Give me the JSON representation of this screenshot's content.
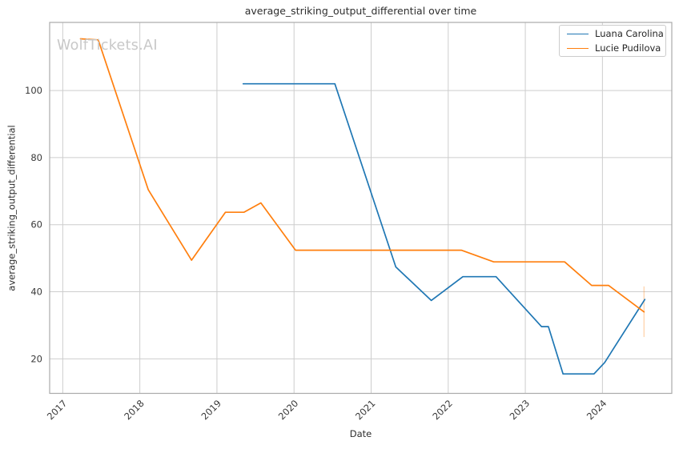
{
  "figure": {
    "watermark": "WolfTickets.AI"
  },
  "chart_data": {
    "type": "line",
    "title": "average_striking_output_differential over time",
    "xlabel": "Date",
    "ylabel": "average_striking_output_differential",
    "x_ticks": [
      2017,
      2018,
      2019,
      2020,
      2021,
      2022,
      2023,
      2024
    ],
    "y_ticks": [
      20,
      40,
      60,
      80,
      100
    ],
    "xlim": [
      2016.83,
      2024.9
    ],
    "ylim": [
      9.7,
      120.3
    ],
    "grid": true,
    "legend_position": "upper right",
    "series": [
      {
        "name": "Luana Carolina",
        "color": "#1f77b4",
        "x": [
          2019.34,
          2020.53,
          2021.32,
          2021.78,
          2022.19,
          2022.62,
          2023.21,
          2023.3,
          2023.49,
          2023.89,
          2024.03,
          2024.55
        ],
        "y": [
          102,
          102,
          47.4,
          37.4,
          44.5,
          44.5,
          29.6,
          29.6,
          15.5,
          15.5,
          18.9,
          37.7
        ]
      },
      {
        "name": "Lucie Pudilova",
        "color": "#ff7f0e",
        "x": [
          2017.23,
          2017.46,
          2018.11,
          2018.67,
          2019.11,
          2019.35,
          2019.57,
          2020.02,
          2022.17,
          2022.59,
          2023.51,
          2023.86,
          2024.08,
          2024.54
        ],
        "y": [
          115.4,
          115.1,
          70.4,
          49.4,
          63.7,
          63.7,
          66.5,
          52.4,
          52.4,
          48.9,
          48.9,
          41.9,
          41.9,
          34.0
        ],
        "error_bar": {
          "x": 2024.54,
          "low": 26.5,
          "high": 41.6
        }
      }
    ]
  }
}
